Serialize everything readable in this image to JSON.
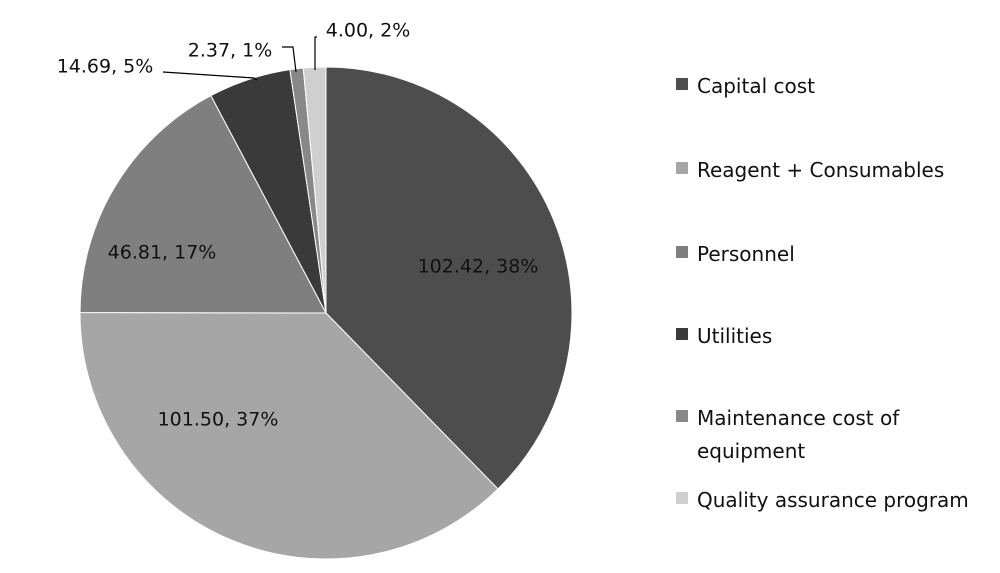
{
  "chart_data": {
    "type": "pie",
    "title": "",
    "legend_position": "right",
    "slices": [
      {
        "name": "Capital cost",
        "value": 102.42,
        "percent": 38,
        "label": "102.42, 38%",
        "color": "#4d4d4d"
      },
      {
        "name": "Reagent + Consumables",
        "value": 101.5,
        "percent": 37,
        "label": "101.50, 37%",
        "color": "#a6a6a6"
      },
      {
        "name": "Personnel",
        "value": 46.81,
        "percent": 17,
        "label": "46.81, 17%",
        "color": "#7f7f7f"
      },
      {
        "name": "Utilities",
        "value": 14.69,
        "percent": 5,
        "label": "14.69, 5%",
        "color": "#3a3a3a"
      },
      {
        "name": "Maintenance cost of equipment",
        "value": 2.37,
        "percent": 1,
        "label": "2.37, 1%",
        "color": "#888888"
      },
      {
        "name": "Quality assurance program",
        "value": 4.0,
        "percent": 2,
        "label": "4.00, 2%",
        "color": "#cfcfcf"
      }
    ]
  }
}
